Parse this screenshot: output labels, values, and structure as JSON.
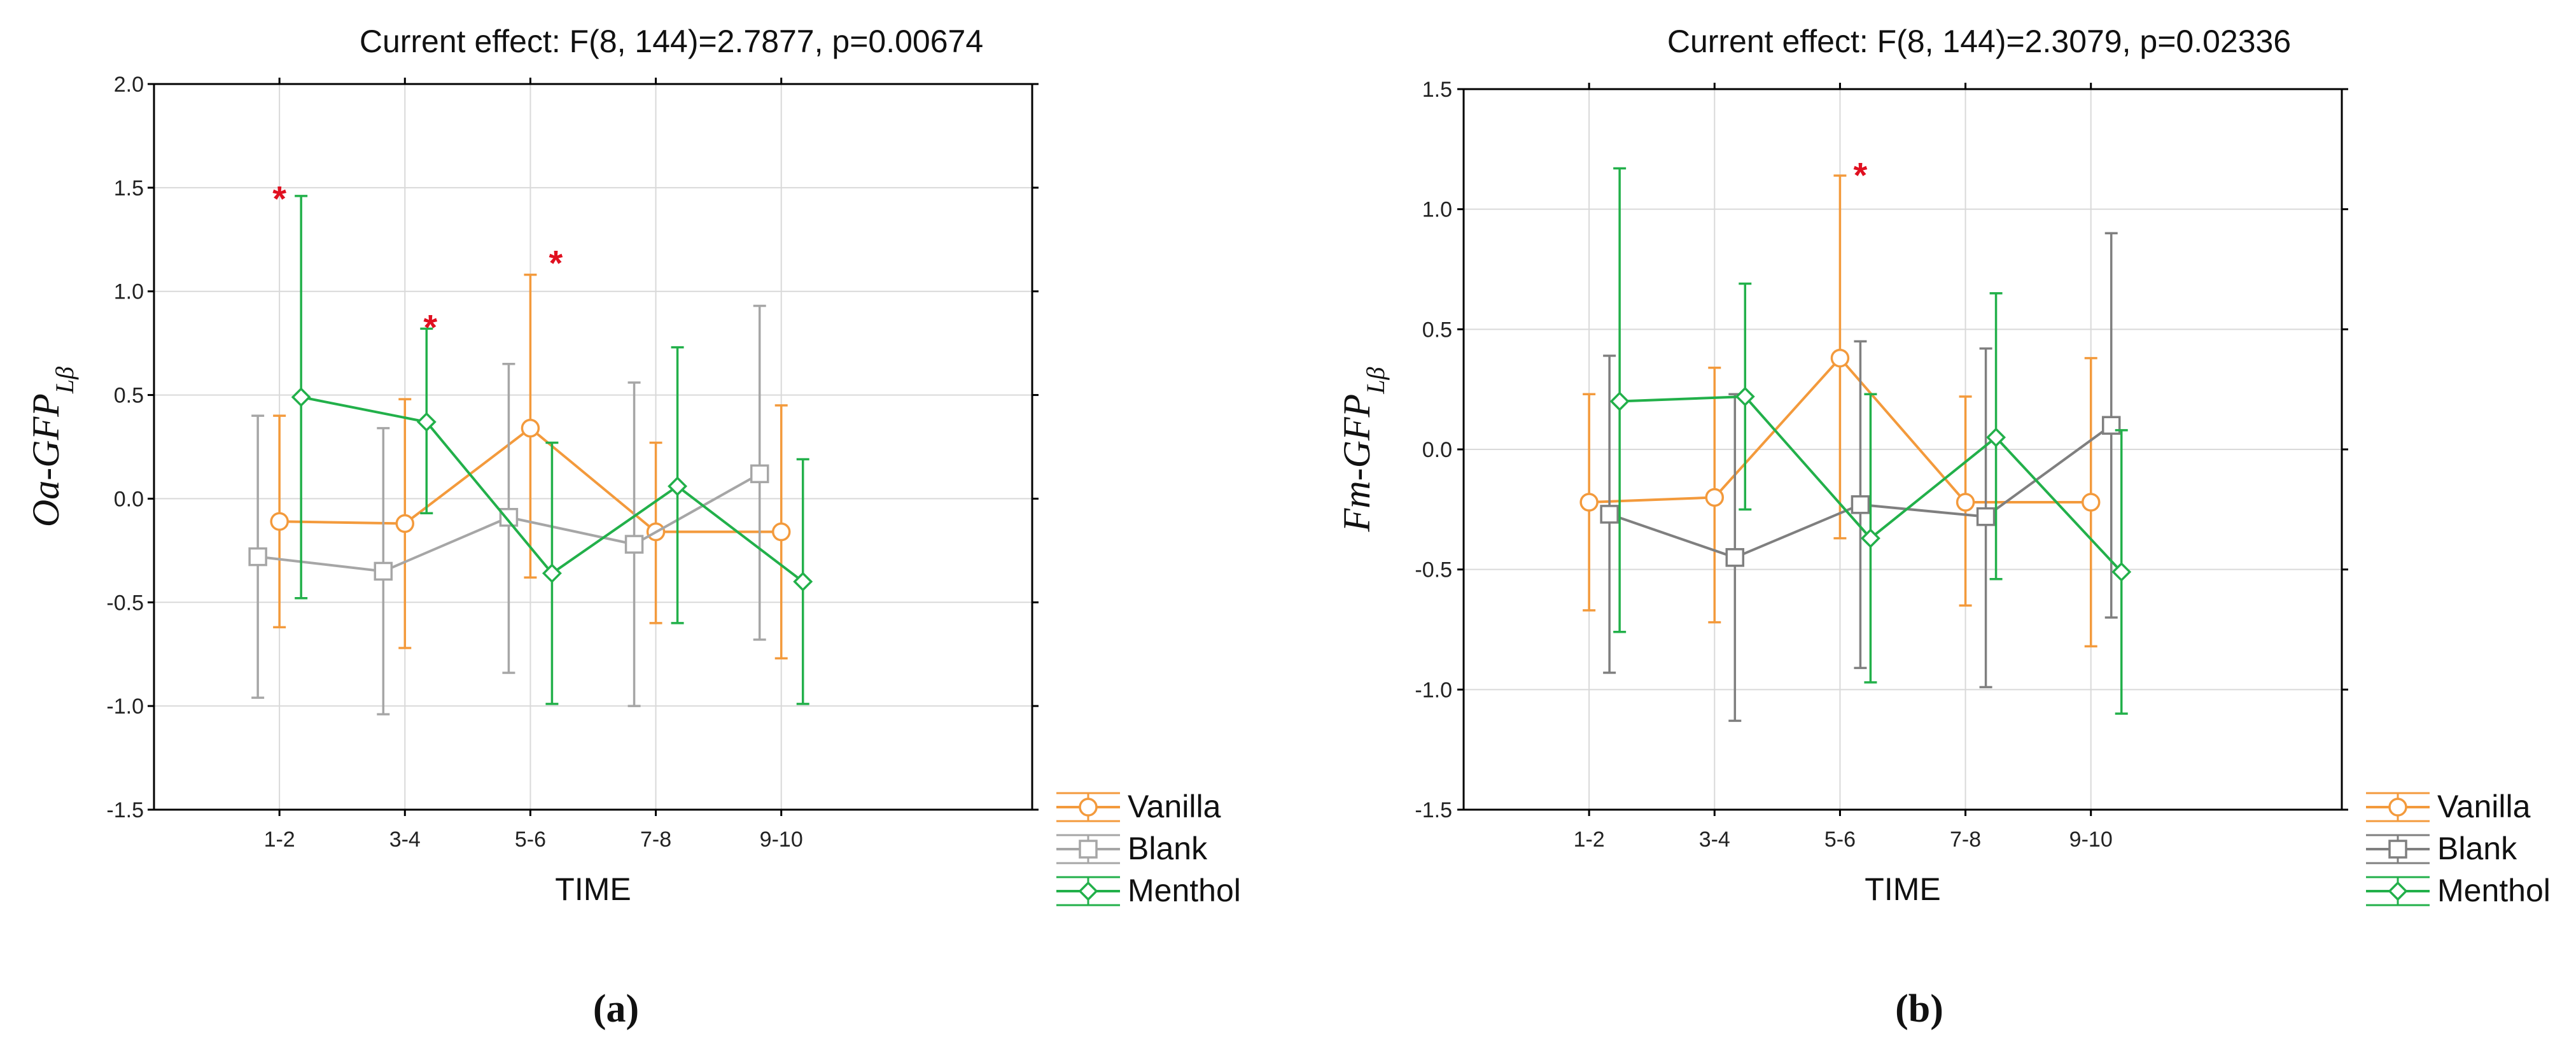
{
  "chart_data": [
    {
      "type": "line",
      "panel_label": "(a)",
      "title": "Current effect: F(8, 144)=2.7877, p=0.00674",
      "xlabel": "TIME",
      "ylabel": {
        "main": "Oa-GFP",
        "sub": "Lβ"
      },
      "ylim": [
        -1.5,
        2.0
      ],
      "yticks": [
        -1.5,
        -1.0,
        -0.5,
        0.0,
        0.5,
        1.0,
        1.5,
        2.0
      ],
      "ytick_labels": [
        "-1.5",
        "-1.0",
        "-0.5",
        "0.0",
        "0.5",
        "1.0",
        "1.5",
        "2.0"
      ],
      "categories": [
        "1-2",
        "3-4",
        "5-6",
        "7-8",
        "9-10"
      ],
      "grid": true,
      "legend_position": "bottom-right outside",
      "series": [
        {
          "name": "Vanilla",
          "color": "#f39a3c",
          "marker": "circle",
          "values": [
            -0.11,
            -0.12,
            0.34,
            -0.16,
            -0.16
          ],
          "lower": [
            -0.62,
            -0.72,
            -0.38,
            -0.6,
            -0.77
          ],
          "upper": [
            0.4,
            0.48,
            1.08,
            0.27,
            0.45
          ]
        },
        {
          "name": "Blank",
          "color": "#a6a6a6",
          "marker": "square",
          "values": [
            -0.28,
            -0.35,
            -0.09,
            -0.22,
            0.12
          ],
          "lower": [
            -0.96,
            -1.04,
            -0.84,
            -1.0,
            -0.68
          ],
          "upper": [
            0.4,
            0.34,
            0.65,
            0.56,
            0.93
          ]
        },
        {
          "name": "Menthol",
          "color": "#22b04a",
          "marker": "diamond",
          "values": [
            0.49,
            0.37,
            -0.36,
            0.06,
            -0.4
          ],
          "lower": [
            -0.48,
            -0.07,
            -0.99,
            -0.6,
            -0.99
          ],
          "upper": [
            1.46,
            0.82,
            0.27,
            0.73,
            0.19
          ]
        }
      ],
      "annotations": [
        {
          "text": "*",
          "category": "1-2",
          "y": 1.48
        },
        {
          "text": "*",
          "category": "3-4",
          "y": 0.86
        },
        {
          "text": "*",
          "category": "5-6",
          "y": 1.17
        }
      ]
    },
    {
      "type": "line",
      "panel_label": "(b)",
      "title": "Current effect: F(8, 144)=2.3079, p=0.02336",
      "xlabel": "TIME",
      "ylabel": {
        "main": "Fm-GFP",
        "sub": "Lβ"
      },
      "ylim": [
        -1.5,
        1.5
      ],
      "yticks": [
        -1.5,
        -1.0,
        -0.5,
        0.0,
        0.5,
        1.0,
        1.5
      ],
      "ytick_labels": [
        "-1.5",
        "-1.0",
        "-0.5",
        "0.0",
        "0.5",
        "1.0",
        "1.5"
      ],
      "categories": [
        "1-2",
        "3-4",
        "5-6",
        "7-8",
        "9-10"
      ],
      "grid": true,
      "legend_position": "bottom-right outside",
      "series": [
        {
          "name": "Vanilla",
          "color": "#f39a3c",
          "marker": "circle",
          "values": [
            -0.22,
            -0.2,
            0.38,
            -0.22,
            -0.22
          ],
          "lower": [
            -0.67,
            -0.72,
            -0.37,
            -0.65,
            -0.82
          ],
          "upper": [
            0.23,
            0.34,
            1.14,
            0.22,
            0.38
          ]
        },
        {
          "name": "Blank",
          "color": "#7f7f7f",
          "marker": "square",
          "values": [
            -0.27,
            -0.45,
            -0.23,
            -0.28,
            0.1
          ],
          "lower": [
            -0.93,
            -1.13,
            -0.91,
            -0.99,
            -0.7
          ],
          "upper": [
            0.39,
            0.23,
            0.45,
            0.42,
            0.9
          ]
        },
        {
          "name": "Menthol",
          "color": "#22b04a",
          "marker": "diamond",
          "values": [
            0.2,
            0.22,
            -0.37,
            0.05,
            -0.51
          ],
          "lower": [
            -0.76,
            -0.25,
            -0.97,
            -0.54,
            -1.1
          ],
          "upper": [
            1.17,
            0.69,
            0.23,
            0.65,
            0.08
          ]
        }
      ],
      "annotations": [
        {
          "text": "*",
          "category": "5-6",
          "y": 1.17
        }
      ]
    }
  ]
}
